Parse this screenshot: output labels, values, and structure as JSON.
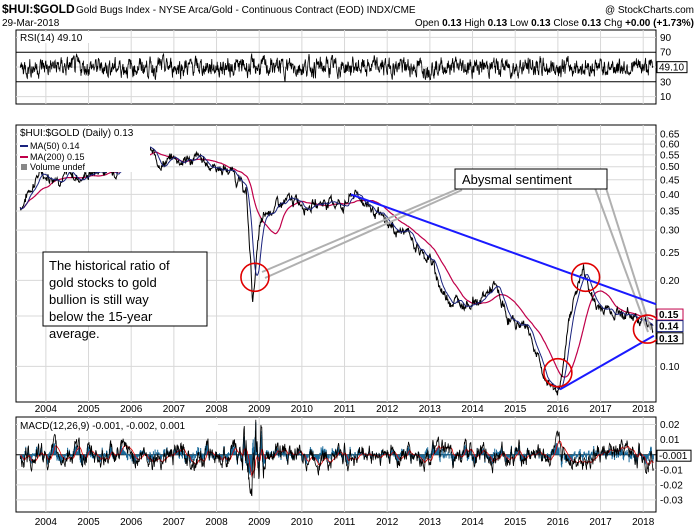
{
  "header": {
    "symbol": "$HUI:$GOLD",
    "description": "Gold Bugs Index - NYSE Arca/Gold - Continuous Contract (EOD) INDX/CME",
    "watermark": "@ StockCharts.com",
    "date": "29-Mar-2018",
    "open_label": "Open",
    "open": "0.13",
    "high_label": "High",
    "high": "0.13",
    "low_label": "Low",
    "low": "0.13",
    "close_label": "Close",
    "close": "0.13",
    "chg_label": "Chg",
    "chg": "+0.00 (+1.73%)"
  },
  "colors": {
    "price": "#000000",
    "ma50": "#1a237e",
    "ma200": "#c0004a",
    "trendline": "#1a1aff",
    "circle": "#e00000",
    "macd": "#000000",
    "signal": "#e00000",
    "histogram": "#1a6a9a"
  },
  "chart_data": [
    {
      "type": "line",
      "title": "RSI(14) 49.10",
      "series": [
        {
          "name": "RSI(14)",
          "last": 49.1
        }
      ],
      "y_ticks": [
        90,
        70,
        50,
        30,
        10
      ],
      "reference_lines": [
        70,
        30
      ],
      "last_value_label": "49.10"
    },
    {
      "type": "line",
      "title": "$HUI:$GOLD (Daily) 0.13",
      "legend": [
        "MA(50) 0.14",
        "MA(200) 0.15",
        "Volume undef"
      ],
      "y_scale": "log",
      "y_ticks": [
        0.65,
        0.6,
        0.55,
        0.5,
        0.45,
        0.4,
        0.35,
        0.3,
        0.25,
        0.2,
        0.15,
        0.1
      ],
      "ylim": [
        0.075,
        0.7
      ],
      "x_ticks": [
        "2004",
        "2005",
        "2006",
        "2007",
        "2008",
        "2009",
        "2010",
        "2011",
        "2012",
        "2013",
        "2014",
        "2015",
        "2016",
        "2017",
        "2018"
      ],
      "x": [
        2003.4,
        2003.8,
        2004.3,
        2004.8,
        2005.3,
        2005.6,
        2006.0,
        2006.3,
        2006.6,
        2007.0,
        2007.5,
        2008.0,
        2008.4,
        2008.7,
        2008.85,
        2009.0,
        2009.3,
        2009.6,
        2010.0,
        2010.3,
        2010.6,
        2011.0,
        2011.2,
        2011.5,
        2011.8,
        2012.2,
        2012.5,
        2012.8,
        2013.0,
        2013.3,
        2013.6,
        2013.9,
        2014.2,
        2014.5,
        2014.8,
        2015.0,
        2015.3,
        2015.5,
        2015.7,
        2015.95,
        2016.1,
        2016.3,
        2016.5,
        2016.6,
        2016.9,
        2017.2,
        2017.5,
        2017.8,
        2018.0,
        2018.24
      ],
      "series": [
        {
          "name": "$HUI:$GOLD",
          "values": [
            0.36,
            0.47,
            0.47,
            0.46,
            0.49,
            0.5,
            0.55,
            0.6,
            0.52,
            0.53,
            0.53,
            0.5,
            0.48,
            0.4,
            0.17,
            0.3,
            0.36,
            0.37,
            0.38,
            0.37,
            0.38,
            0.37,
            0.4,
            0.38,
            0.33,
            0.3,
            0.29,
            0.25,
            0.24,
            0.18,
            0.17,
            0.17,
            0.17,
            0.19,
            0.15,
            0.14,
            0.14,
            0.11,
            0.09,
            0.085,
            0.09,
            0.16,
            0.2,
            0.215,
            0.16,
            0.16,
            0.155,
            0.15,
            0.15,
            0.13
          ]
        },
        {
          "name": "MA(50)",
          "last": 0.14
        },
        {
          "name": "MA(200)",
          "last": 0.15
        }
      ],
      "last_value_labels": [
        "0.15",
        "0.14",
        "0.13"
      ]
    },
    {
      "type": "line",
      "title": "MACD(12,26,9) -0.001, -0.002, 0.001",
      "series": [
        {
          "name": "MACD(12,26,9)",
          "last": -0.001
        },
        {
          "name": "Signal",
          "last": -0.002
        },
        {
          "name": "Histogram",
          "last": 0.001
        }
      ],
      "y_ticks": [
        0.02,
        0.01,
        0.0,
        -0.01,
        -0.02,
        -0.03
      ],
      "last_value_label": "-0.001",
      "x_ticks": [
        "2004",
        "2005",
        "2006",
        "2007",
        "2008",
        "2009",
        "2010",
        "2011",
        "2012",
        "2013",
        "2014",
        "2015",
        "2016",
        "2017",
        "2018"
      ]
    }
  ],
  "annotations": {
    "sentiment_label": "Abysmal sentiment",
    "note": "The historical ratio of gold stocks to gold bullion is still way below the 15-year average."
  }
}
